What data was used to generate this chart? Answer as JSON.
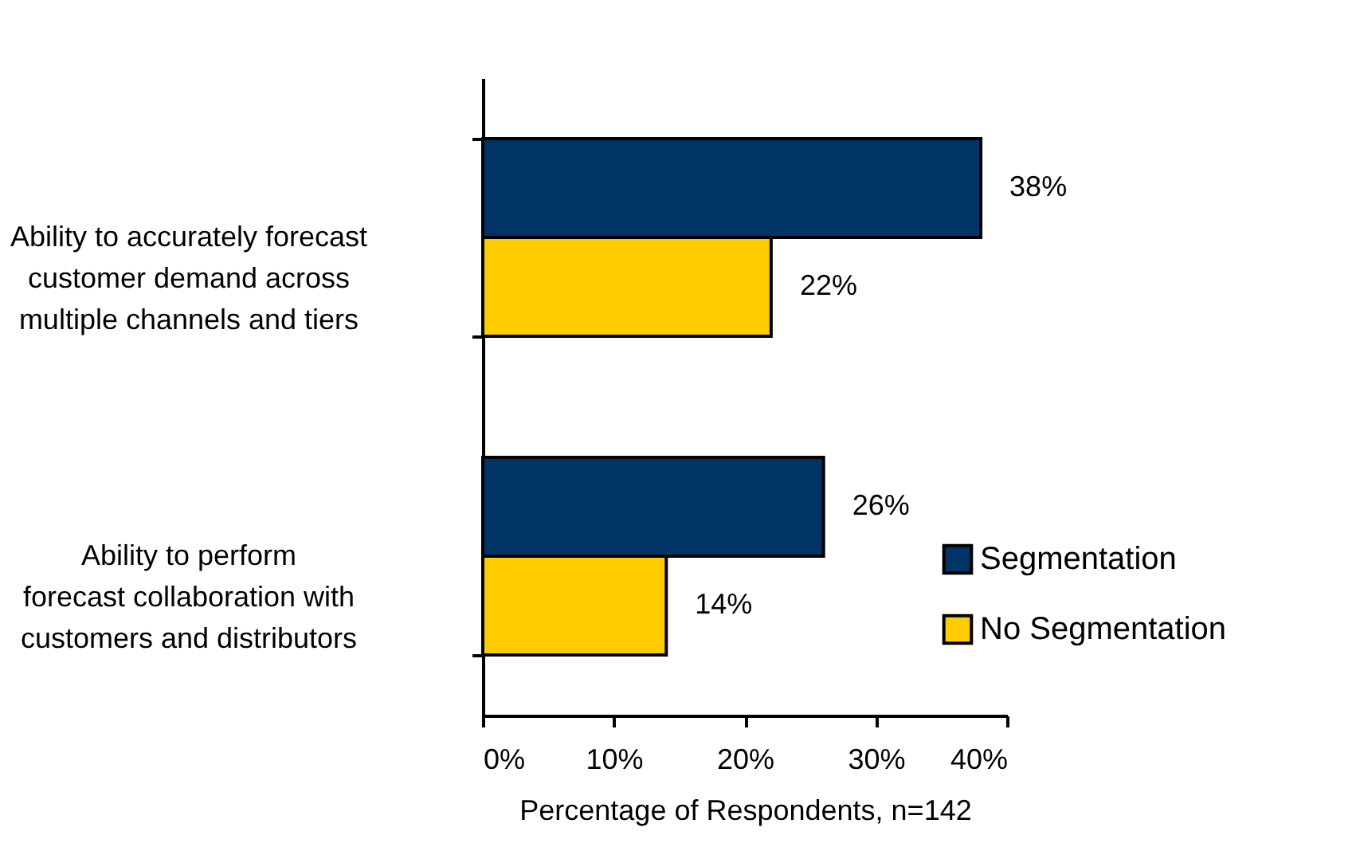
{
  "chart_data": {
    "type": "bar",
    "orientation": "horizontal",
    "categories": [
      "Ability to accurately forecast customer demand across multiple channels and tiers",
      "Ability to perform forecast collaboration with customers and distributors"
    ],
    "series": [
      {
        "name": "Segmentation",
        "color": "#003366",
        "values": [
          38,
          26
        ],
        "value_labels": [
          "38%",
          "26%"
        ]
      },
      {
        "name": "No Segmentation",
        "color": "#ffcc00",
        "values": [
          22,
          14
        ],
        "value_labels": [
          "22%",
          "14%"
        ]
      }
    ],
    "xlabel": "Percentage of Respondents, n=142",
    "xlim": [
      0,
      40
    ],
    "xticks": [
      {
        "value": 0,
        "label": "0%"
      },
      {
        "value": 10,
        "label": "10%"
      },
      {
        "value": 20,
        "label": "20%"
      },
      {
        "value": 30,
        "label": "30%"
      },
      {
        "value": 40,
        "label": "40%"
      }
    ],
    "grid": false,
    "legend": "bottom right"
  }
}
